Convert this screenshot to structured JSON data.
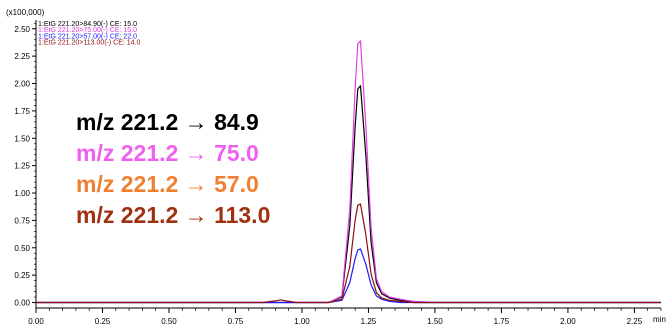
{
  "chart_data": {
    "type": "line",
    "title": "",
    "xlabel": "",
    "ylabel": "",
    "x_unit": "min",
    "y_multiplier": "(x100,000)",
    "xlim": [
      0.0,
      2.35
    ],
    "ylim": [
      -0.05,
      2.58
    ],
    "x_ticks": [
      "0.00",
      "0.25",
      "0.50",
      "0.75",
      "1.00",
      "1.25",
      "1.50",
      "1.75",
      "2.00",
      "2.25"
    ],
    "y_ticks": [
      "0.00",
      "0.25",
      "0.50",
      "0.75",
      "1.00",
      "1.25",
      "1.50",
      "1.75",
      "2.00",
      "2.25",
      "2.50"
    ],
    "grid": false,
    "legend_position": "top-left",
    "series": [
      {
        "name": "1:EtG 221.20>84.90(-) CE: 15.0",
        "color": "#000000",
        "annotation": "m/z 221.2 → 84.9",
        "annotation_color": "#000000",
        "x": [
          0.0,
          1.1,
          1.15,
          1.18,
          1.2,
          1.21,
          1.22,
          1.24,
          1.26,
          1.28,
          1.3,
          1.33,
          1.37,
          1.42,
          1.5,
          2.35
        ],
        "y": [
          0.0,
          0.0,
          0.05,
          0.7,
          1.6,
          1.95,
          1.98,
          1.35,
          0.55,
          0.18,
          0.08,
          0.04,
          0.02,
          0.0,
          0.0,
          0.0
        ]
      },
      {
        "name": "1:EtG 221.20>75.00(-) CE: 15.0",
        "color": "#e040e0",
        "annotation": "m/z 221.2 → 75.0",
        "annotation_color": "#f060f0",
        "x": [
          0.0,
          1.1,
          1.15,
          1.18,
          1.2,
          1.21,
          1.22,
          1.24,
          1.26,
          1.28,
          1.3,
          1.33,
          1.37,
          1.42,
          1.5,
          2.35
        ],
        "y": [
          0.0,
          0.0,
          0.06,
          0.85,
          1.95,
          2.36,
          2.39,
          1.62,
          0.68,
          0.22,
          0.1,
          0.05,
          0.03,
          0.01,
          0.0,
          0.0
        ]
      },
      {
        "name": "1:EtG 221.20>57.00(-) CE: 22.0",
        "color": "#1a1aff",
        "annotation": "m/z 221.2 → 57.0",
        "annotation_color": "#f08030",
        "x": [
          0.0,
          1.1,
          1.15,
          1.18,
          1.2,
          1.21,
          1.22,
          1.24,
          1.26,
          1.28,
          1.3,
          1.33,
          1.37,
          1.42,
          1.5,
          2.35
        ],
        "y": [
          0.0,
          0.0,
          0.02,
          0.18,
          0.4,
          0.48,
          0.49,
          0.35,
          0.16,
          0.06,
          0.03,
          0.01,
          0.0,
          0.0,
          0.0,
          0.0
        ]
      },
      {
        "name": "1:EtG 221.20>113.00(-) CE: 14.0",
        "color": "#8b1010",
        "annotation": "m/z 221.2 → 113.0",
        "annotation_color": "#a03010",
        "x": [
          0.0,
          0.85,
          0.9,
          0.92,
          0.94,
          0.98,
          1.1,
          1.15,
          1.18,
          1.2,
          1.21,
          1.22,
          1.24,
          1.26,
          1.28,
          1.3,
          1.33,
          1.37,
          1.42,
          1.5,
          2.35
        ],
        "y": [
          0.0,
          0.0,
          0.015,
          0.025,
          0.015,
          0.0,
          0.0,
          0.03,
          0.33,
          0.75,
          0.89,
          0.9,
          0.62,
          0.26,
          0.09,
          0.04,
          0.02,
          0.01,
          0.0,
          0.0,
          0.0
        ]
      }
    ]
  }
}
